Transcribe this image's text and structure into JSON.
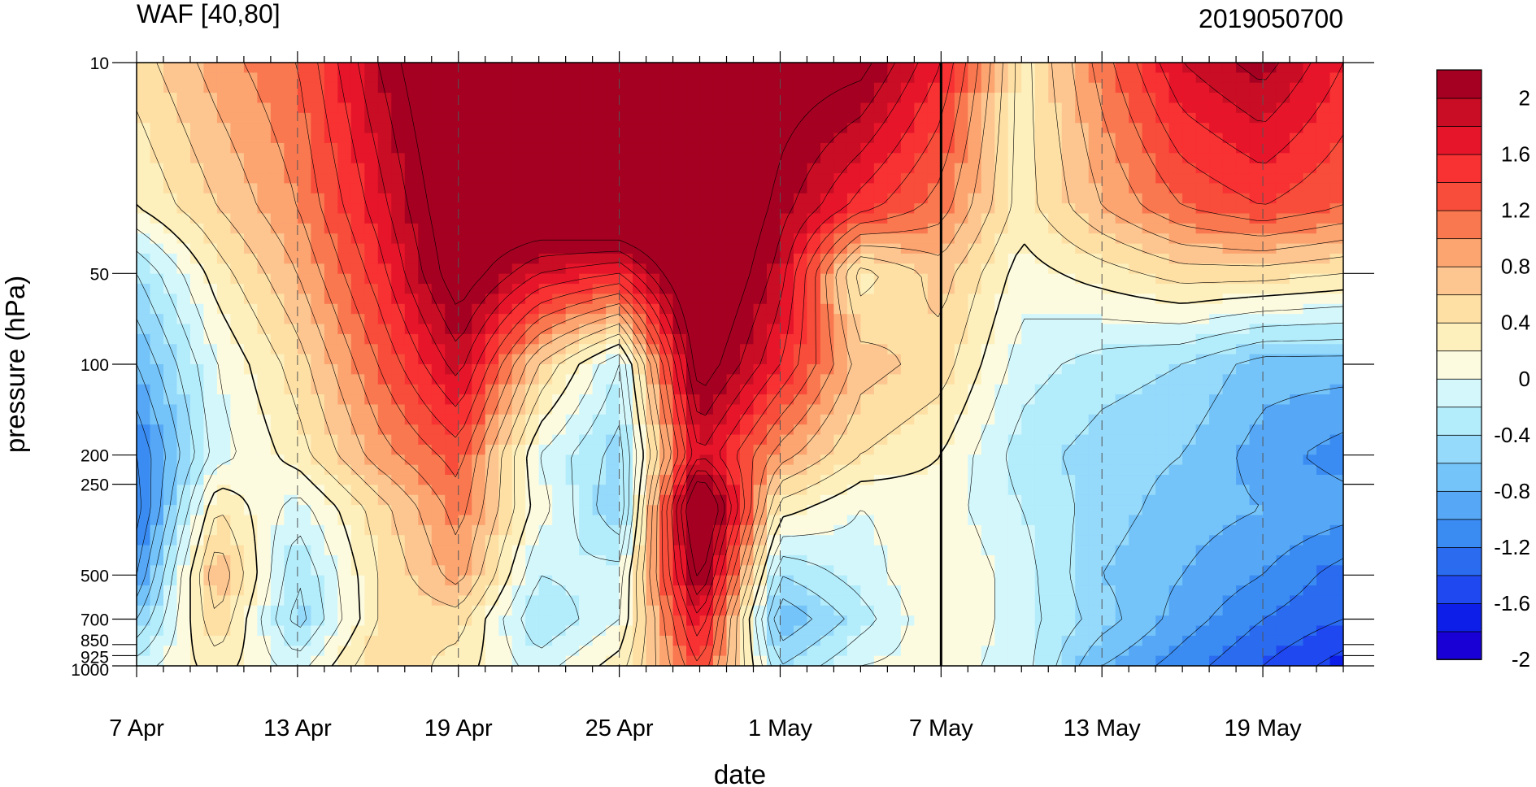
{
  "chart_data": {
    "type": "heatmap",
    "title": "WAF [40,80]",
    "subtitle": "2019050700",
    "xlabel": "date",
    "ylabel": "pressure (hPa)",
    "x_start": "7 Apr",
    "x_end": "22 May",
    "x_tick_labels": [
      "7 Apr",
      "13 Apr",
      "19 Apr",
      "25 Apr",
      "1 May",
      "7 May",
      "13 May",
      "19 May"
    ],
    "y_tick_labels": [
      "10",
      "50",
      "100",
      "200",
      "250",
      "500",
      "700",
      "850",
      "925",
      "1000"
    ],
    "y_scale": "log",
    "ylim": [
      1000,
      10
    ],
    "current_date_marker": "7 May",
    "colorbar": {
      "labels": [
        "2",
        "1.6",
        "1.2",
        "0.8",
        "0.4",
        "0",
        "-0.4",
        "-0.8",
        "-1.2",
        "-1.6",
        "-2"
      ],
      "levels": [
        -2.2,
        -2.0,
        -1.8,
        -1.6,
        -1.4,
        -1.2,
        -1.0,
        -0.8,
        -0.6,
        -0.4,
        -0.2,
        0,
        0.2,
        0.4,
        0.6,
        0.8,
        1.0,
        1.2,
        1.4,
        1.6,
        1.8,
        2.0,
        2.2
      ],
      "colors": [
        "#1900d5",
        "#0d1ee8",
        "#1f48f0",
        "#2a6bf0",
        "#3a8cf2",
        "#56a8f7",
        "#74c4f9",
        "#95d9fb",
        "#b3ecfb",
        "#d4f7fb",
        "#fcfbe0",
        "#fdf0bc",
        "#fee0a5",
        "#fdc690",
        "#fca571",
        "#f97850",
        "#f84d3a",
        "#f83133",
        "#e7152a",
        "#c90d24",
        "#a50021"
      ]
    },
    "dates": [
      "7 Apr",
      "10 Apr",
      "13 Apr",
      "16 Apr",
      "19 Apr",
      "22 Apr",
      "25 Apr",
      "28 Apr",
      "1 May",
      "4 May",
      "7 May",
      "10 May",
      "13 May",
      "16 May",
      "19 May",
      "22 May"
    ],
    "levels_hPa": [
      10,
      30,
      50,
      100,
      200,
      300,
      500,
      700,
      1000
    ],
    "values": [
      [
        0.3,
        0.7,
        1.0,
        1.8,
        2.5,
        2.6,
        2.8,
        2.8,
        2.2,
        2.1,
        1.4,
        0.1,
        0.9,
        1.6,
        1.9,
        1.4
      ],
      [
        0.0,
        0.4,
        0.8,
        1.5,
        2.3,
        2.4,
        2.6,
        2.6,
        1.9,
        1.3,
        0.9,
        0.1,
        0.6,
        1.0,
        1.2,
        1.0
      ],
      [
        -0.6,
        0.1,
        0.6,
        1.3,
        2.2,
        1.6,
        1.4,
        2.5,
        1.7,
        0.1,
        0.5,
        -0.1,
        0.1,
        0.3,
        0.3,
        0.2
      ],
      [
        -1.0,
        -0.2,
        0.3,
        1.0,
        1.7,
        0.4,
        -0.4,
        2.2,
        1.4,
        0.5,
        0.3,
        -0.3,
        -0.5,
        -0.6,
        -0.9,
        -0.9
      ],
      [
        -1.4,
        -0.3,
        0.1,
        0.7,
        1.1,
        -0.2,
        -0.7,
        1.6,
        0.7,
        0.2,
        0.0,
        -0.5,
        -0.7,
        -0.8,
        -1.1,
        -1.3
      ],
      [
        -1.5,
        0.2,
        -0.3,
        0.3,
        0.9,
        -0.1,
        -0.8,
        2.6,
        0.1,
        -0.2,
        -0.1,
        -0.4,
        -0.7,
        -0.9,
        -1.0,
        -1.1
      ],
      [
        -1.2,
        0.6,
        -0.6,
        0.2,
        0.7,
        -0.4,
        -0.3,
        2.1,
        -0.6,
        -0.3,
        0.0,
        -0.3,
        -0.8,
        -1.0,
        -1.2,
        -1.5
      ],
      [
        -0.8,
        0.4,
        -0.7,
        0.2,
        0.3,
        -0.6,
        -0.2,
        1.6,
        -1.0,
        -0.5,
        0.0,
        -0.3,
        -0.7,
        -1.1,
        -1.4,
        -1.6
      ],
      [
        -0.3,
        0.1,
        -0.3,
        0.4,
        0.1,
        -0.3,
        0.1,
        1.2,
        -0.6,
        -0.2,
        -0.1,
        -0.3,
        -1.0,
        -1.3,
        -1.6,
        -1.9
      ]
    ]
  }
}
